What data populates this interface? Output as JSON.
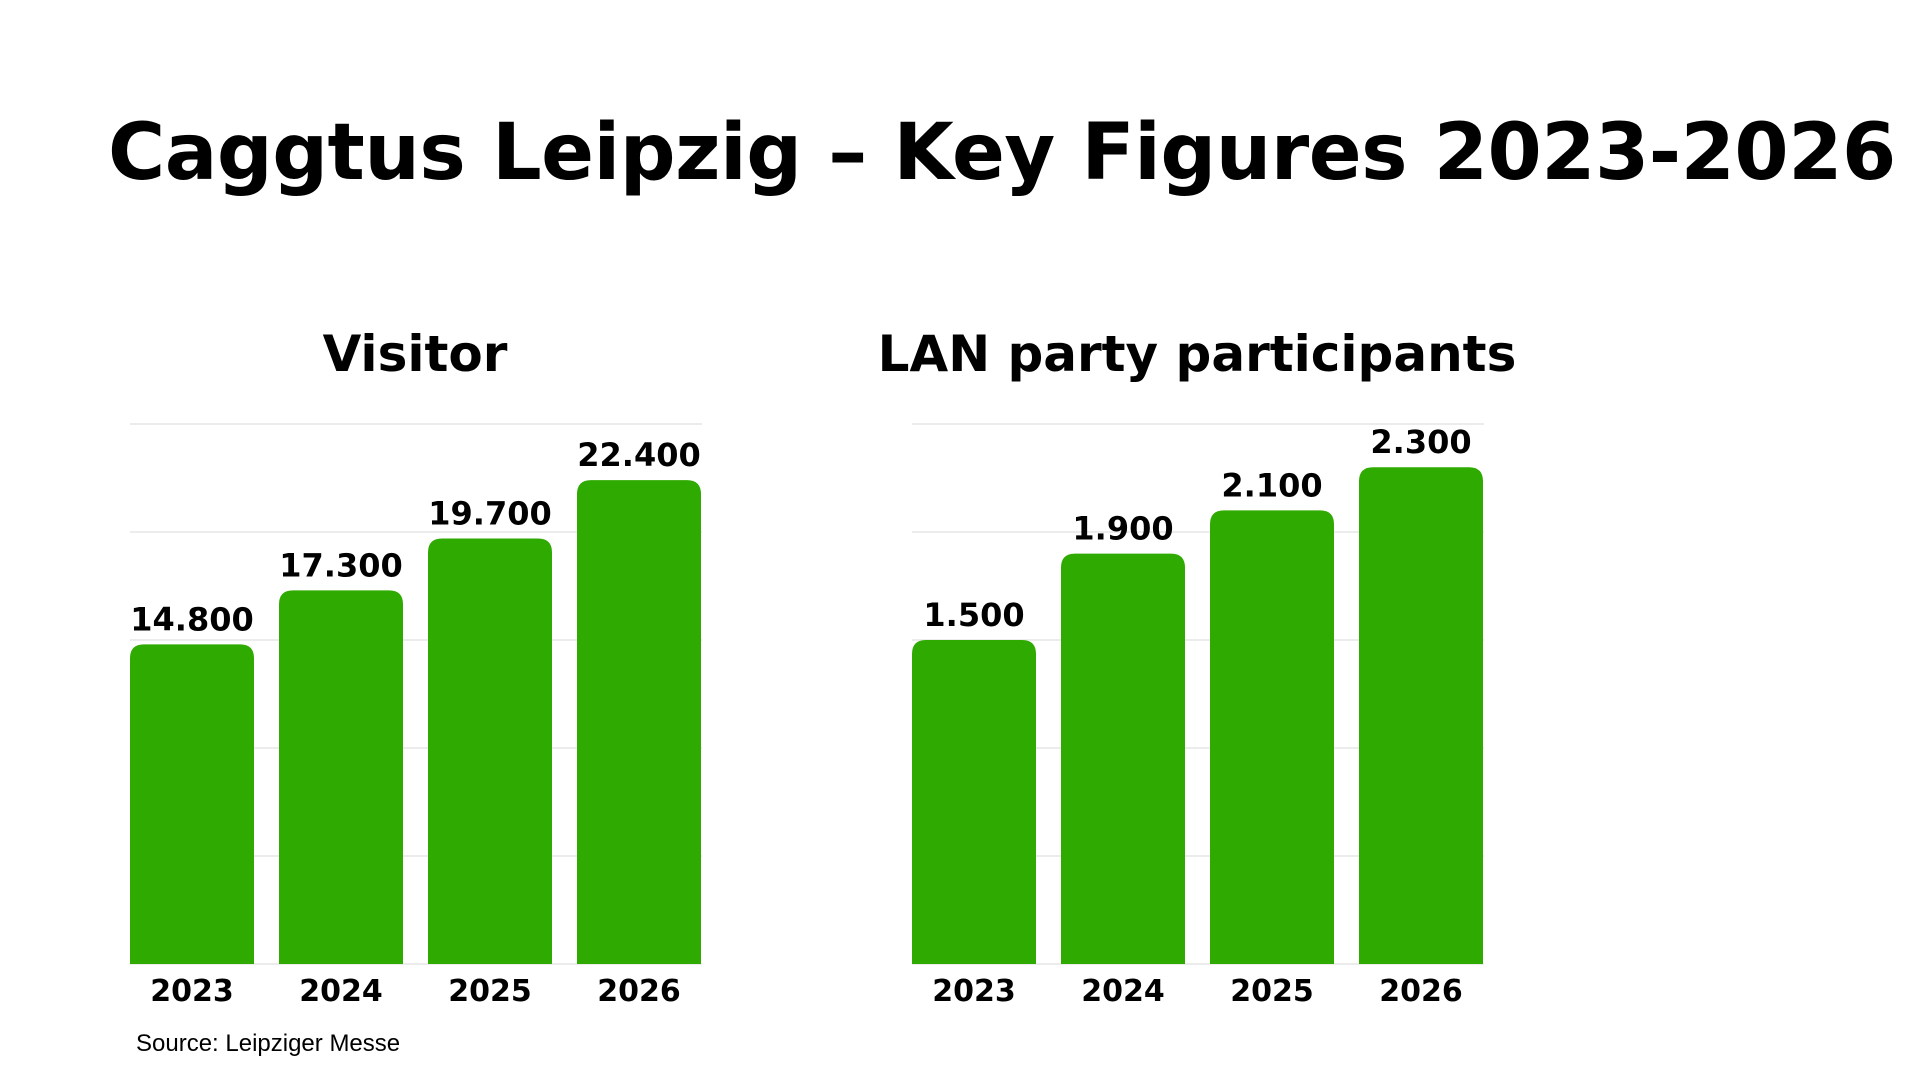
{
  "title": "Caggtus Leipzig – Key Figures 2023-2026",
  "source": "Source: Leipziger Messe",
  "colors": {
    "bar": "#2eaa00",
    "grid": "#e6e6e6",
    "text": "#000000",
    "background": "#ffffff"
  },
  "chart_data": [
    {
      "type": "bar",
      "title": "Visitor",
      "categories": [
        "2023",
        "2024",
        "2025",
        "2026"
      ],
      "values": [
        14800,
        17300,
        19700,
        22400
      ],
      "value_labels": [
        "14.800",
        "17.300",
        "19.700",
        "22.400"
      ],
      "xlabel": "",
      "ylabel": "",
      "ylim": [
        0,
        25000
      ],
      "grid": true,
      "legend": "none"
    },
    {
      "type": "bar",
      "title": "LAN party participants",
      "categories": [
        "2023",
        "2024",
        "2025",
        "2026"
      ],
      "values": [
        1500,
        1900,
        2100,
        2300
      ],
      "value_labels": [
        "1.500",
        "1.900",
        "2.100",
        "2.300"
      ],
      "xlabel": "",
      "ylabel": "",
      "ylim": [
        0,
        2500
      ],
      "grid": true,
      "legend": "none"
    }
  ]
}
